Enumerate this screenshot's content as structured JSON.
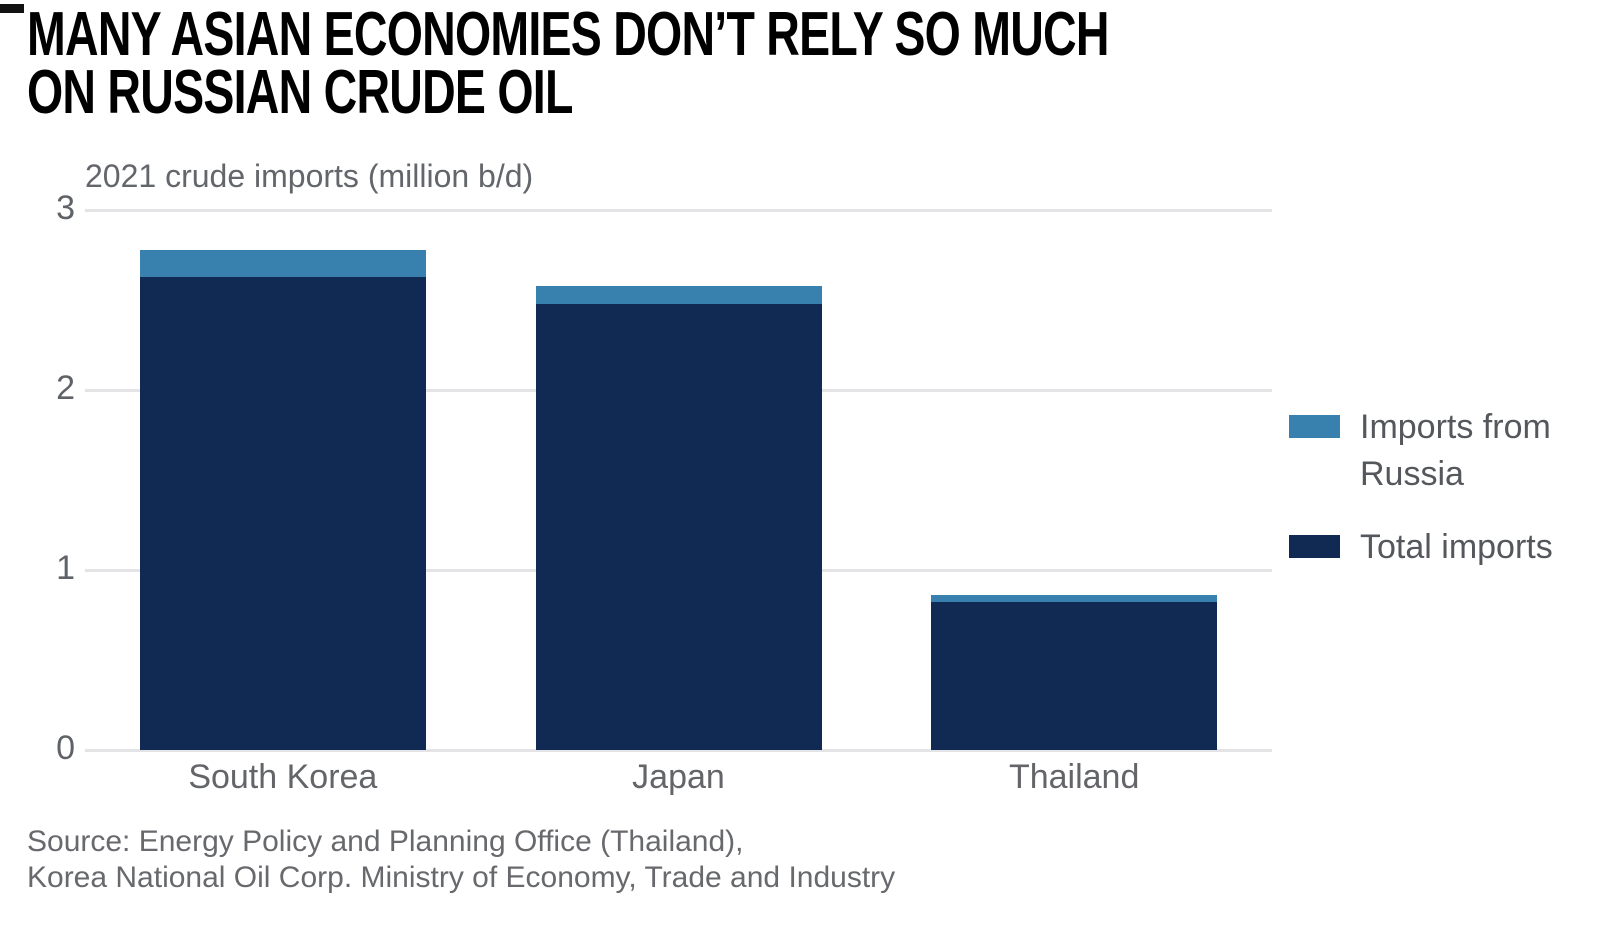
{
  "title": {
    "line1": "MANY ASIAN ECONOMIES DON’T RELY SO MUCH",
    "line2": "ON RUSSIAN CRUDE OIL"
  },
  "chart_data": {
    "type": "bar",
    "stacked": true,
    "subtitle": "2021 crude imports (million b/d)",
    "categories": [
      "South Korea",
      "Japan",
      "Thailand"
    ],
    "series": [
      {
        "name": "Imports from Russia",
        "color": "#3880ad",
        "values": [
          0.15,
          0.1,
          0.04
        ]
      },
      {
        "name": "Total imports",
        "color": "#112a53",
        "values": [
          2.78,
          2.58,
          0.86
        ]
      }
    ],
    "ylabel": "",
    "xlabel": "",
    "yticks": [
      0,
      1,
      2,
      3
    ],
    "ylim": [
      0,
      3
    ],
    "grid": true,
    "legend_position": "right",
    "note_total_includes_russia": true
  },
  "colors": {
    "blue": "#3880ad",
    "navy": "#112a53",
    "gridline": "#e4e4e6",
    "axis_text": "#5f6368",
    "category_text": "#636569",
    "legend_text": "#54575c",
    "subtitle_text": "#63666b",
    "source_text": "#67696d",
    "title_text": "#000000"
  },
  "source": {
    "line1": "Source: Energy Policy and Planning Office (Thailand),",
    "line2": "Korea National Oil Corp. Ministry of Economy, Trade and Industry"
  }
}
